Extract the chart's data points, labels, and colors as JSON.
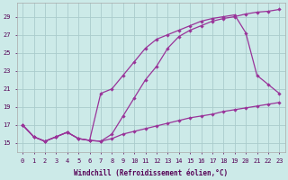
{
  "xlabel": "Windchill (Refroidissement éolien,°C)",
  "ylabel": "",
  "bg_color": "#cceae8",
  "line_color": "#993399",
  "grid_color": "#aacccc",
  "xlim": [
    -0.5,
    23.5
  ],
  "ylim": [
    14.0,
    30.5
  ],
  "xticks": [
    0,
    1,
    2,
    3,
    4,
    5,
    6,
    7,
    8,
    9,
    10,
    11,
    12,
    13,
    14,
    15,
    16,
    17,
    18,
    19,
    20,
    21,
    22,
    23
  ],
  "yticks": [
    15,
    17,
    19,
    21,
    23,
    25,
    27,
    29
  ],
  "line1_x": [
    0,
    1,
    2,
    3,
    4,
    5,
    6,
    7,
    8,
    9,
    10,
    11,
    12,
    13,
    14,
    15,
    16,
    17,
    18,
    19,
    20,
    21,
    22,
    23
  ],
  "line1_y": [
    17.0,
    15.7,
    15.2,
    15.7,
    16.2,
    15.5,
    15.3,
    15.2,
    16.0,
    18.0,
    20.0,
    22.0,
    23.5,
    25.5,
    26.8,
    27.5,
    28.0,
    28.5,
    28.8,
    29.0,
    29.3,
    29.5,
    29.6,
    29.8
  ],
  "line2_x": [
    0,
    1,
    2,
    3,
    4,
    5,
    6,
    7,
    8,
    9,
    10,
    11,
    12,
    13,
    14,
    15,
    16,
    17,
    18,
    19,
    20,
    21,
    22,
    23
  ],
  "line2_y": [
    17.0,
    15.7,
    15.2,
    15.7,
    16.2,
    15.5,
    15.3,
    20.5,
    21.0,
    22.5,
    24.0,
    25.5,
    26.5,
    27.0,
    27.5,
    28.0,
    28.5,
    28.8,
    29.0,
    29.2,
    27.2,
    22.5,
    21.5,
    20.5
  ],
  "line3_x": [
    0,
    1,
    2,
    3,
    4,
    5,
    6,
    7,
    8,
    9,
    10,
    11,
    12,
    13,
    14,
    15,
    16,
    17,
    18,
    19,
    20,
    21,
    22,
    23
  ],
  "line3_y": [
    17.0,
    15.7,
    15.2,
    15.7,
    16.2,
    15.5,
    15.3,
    15.2,
    15.5,
    16.0,
    16.3,
    16.6,
    16.9,
    17.2,
    17.5,
    17.8,
    18.0,
    18.2,
    18.5,
    18.7,
    18.9,
    19.1,
    19.3,
    19.5
  ]
}
